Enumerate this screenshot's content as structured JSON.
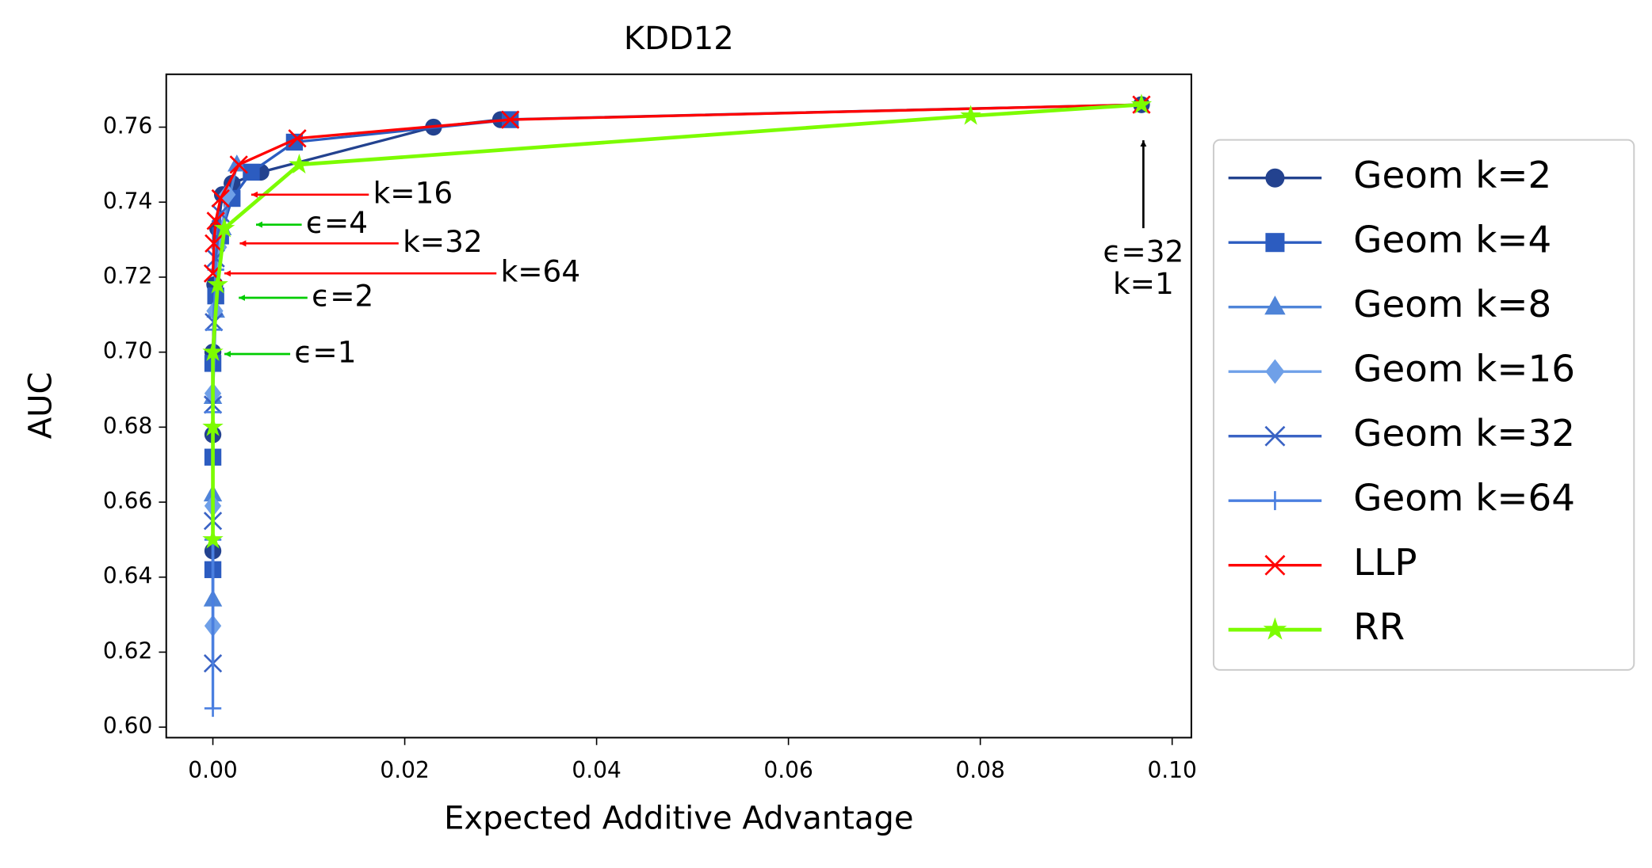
{
  "chart_data": {
    "type": "line",
    "title": "KDD12",
    "xlabel": "Expected Additive Advantage",
    "ylabel": "AUC",
    "xlim": [
      -0.00486,
      0.102
    ],
    "ylim": [
      0.5972,
      0.7741
    ],
    "xticks": [
      {
        "value": 0,
        "label": "0.00"
      },
      0.02,
      0.04,
      0.06,
      0.08,
      {
        "value": 0.1,
        "label": "0.10"
      }
    ],
    "yticks": [
      {
        "value": 0.6,
        "label": "0.60"
      },
      0.62,
      0.64,
      0.66,
      0.68,
      {
        "value": 0.7,
        "label": "0.70"
      },
      0.72,
      0.74,
      0.76
    ],
    "legend": "outside-right",
    "series": [
      {
        "name": "Geom k=2",
        "color": "#23428f",
        "marker": "circle",
        "x": [
          0,
          0,
          0,
          0.0002,
          0.0005,
          0.001,
          0.002,
          0.005,
          0.023,
          0.03,
          0.0968
        ],
        "values": [
          0.647,
          0.678,
          0.7,
          0.718,
          0.733,
          0.742,
          0.745,
          0.748,
          0.76,
          0.762,
          0.766
        ]
      },
      {
        "name": "Geom k=4",
        "color": "#2c5cc0",
        "marker": "square",
        "x": [
          0,
          0,
          0,
          0.0003,
          0.0008,
          0.002,
          0.004,
          0.0085,
          0.031
        ],
        "values": [
          0.642,
          0.672,
          0.697,
          0.715,
          0.731,
          0.741,
          0.748,
          0.756,
          0.762
        ]
      },
      {
        "name": "Geom k=8",
        "color": "#4f84d8",
        "marker": "triangle",
        "x": [
          0,
          0,
          0,
          0.0003,
          0.001,
          0.0025
        ],
        "values": [
          0.634,
          0.662,
          0.688,
          0.711,
          0.733,
          0.75
        ]
      },
      {
        "name": "Geom k=16",
        "color": "#6fa0e8",
        "marker": "diamond",
        "x": [
          0,
          0,
          0,
          0.0002,
          0.0006,
          0.0015
        ],
        "values": [
          0.627,
          0.659,
          0.689,
          0.711,
          0.728,
          0.742
        ]
      },
      {
        "name": "Geom k=32",
        "color": "#3a63c4",
        "marker": "x",
        "x": [
          0,
          0,
          0,
          0.0001,
          0.0003,
          0.0008
        ],
        "values": [
          0.617,
          0.655,
          0.686,
          0.708,
          0.725,
          0.737
        ]
      },
      {
        "name": "Geom k=64",
        "color": "#4a7fe0",
        "marker": "plus",
        "x": [
          0,
          0,
          0,
          0.0001,
          0.0003
        ],
        "values": [
          0.605,
          0.65,
          0.684,
          0.706,
          0.722
        ]
      },
      {
        "name": "LLP",
        "color": "#ff0000",
        "marker": "x",
        "x": [
          0,
          0.0001,
          0.0003,
          0.0008,
          0.0027,
          0.0088,
          0.031,
          0.0968
        ],
        "values": [
          0.721,
          0.729,
          0.735,
          0.741,
          0.75,
          0.757,
          0.762,
          0.766
        ]
      },
      {
        "name": "RR",
        "color": "#7cfc00",
        "marker": "star",
        "x": [
          0,
          0,
          0,
          0.0005,
          0.0012,
          0.009,
          0.079,
          0.0968
        ],
        "values": [
          0.65,
          0.68,
          0.7,
          0.718,
          0.733,
          0.75,
          0.763,
          0.766
        ]
      }
    ],
    "annotations": [
      {
        "text": "k=16",
        "color": "#ff0000",
        "x": 0.0167,
        "y": 0.742,
        "arrow_x": 0.004,
        "arrow_y": 0.742,
        "arrow_color": "#ff0000"
      },
      {
        "text": "ϵ=4",
        "color": "#00cc00",
        "x": 0.0097,
        "y": 0.734,
        "arrow_x": 0.0045,
        "arrow_y": 0.734,
        "arrow_color": "#00cc00"
      },
      {
        "text": "k=32",
        "color": "#ff0000",
        "x": 0.0198,
        "y": 0.729,
        "arrow_x": 0.0028,
        "arrow_y": 0.729,
        "arrow_color": "#ff0000"
      },
      {
        "text": "k=64",
        "color": "#ff0000",
        "x": 0.03,
        "y": 0.721,
        "arrow_x": 0.0012,
        "arrow_y": 0.721,
        "arrow_color": "#ff0000"
      },
      {
        "text": "ϵ=2",
        "color": "#00cc00",
        "x": 0.0103,
        "y": 0.7145,
        "arrow_x": 0.0027,
        "arrow_y": 0.7145,
        "arrow_color": "#00cc00"
      },
      {
        "text": "ϵ=1",
        "color": "#00cc00",
        "x": 0.0085,
        "y": 0.6995,
        "arrow_x": 0.0012,
        "arrow_y": 0.6995,
        "arrow_color": "#00cc00"
      },
      {
        "text": "ϵ=32",
        "color": "#00cc00",
        "x": 0.097,
        "y": 0.7263,
        "arrow_x": 0.097,
        "arrow_y": 0.7565,
        "arrow_color": "#000000"
      },
      {
        "text": "k=1",
        "color": "#ff0000",
        "x": 0.097,
        "y": 0.7178
      }
    ]
  }
}
